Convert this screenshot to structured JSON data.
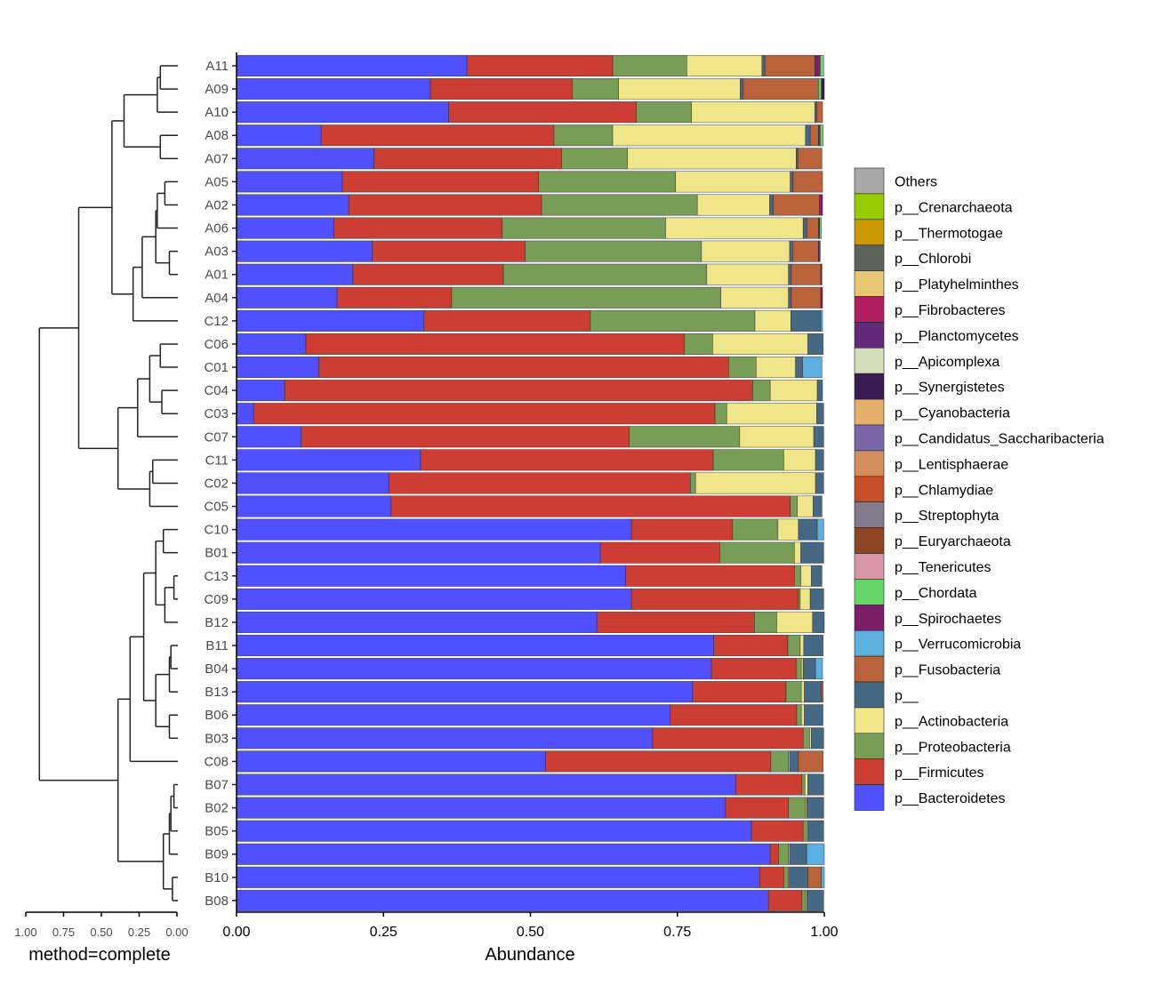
{
  "chart_data": {
    "type": "bar",
    "orientation": "horizontal-stacked",
    "xlabel": "Abundance",
    "xlim": [
      0,
      1
    ],
    "x_ticks": [
      "0.00",
      "0.25",
      "0.50",
      "0.75",
      "1.00"
    ],
    "dendrogram": {
      "method_label": "method=complete",
      "x_ticks": [
        "1.00",
        "0.75",
        "0.50",
        "0.25",
        "0.00"
      ]
    },
    "legend_placement": "right",
    "legend": [
      {
        "name": "Others",
        "color": "#A9A9A9"
      },
      {
        "name": "p__Crenarchaeota",
        "color": "#99CC00"
      },
      {
        "name": "p__Thermotogae",
        "color": "#CC9900"
      },
      {
        "name": "p__Chlorobi",
        "color": "#5A6458"
      },
      {
        "name": "p__Platyhelminthes",
        "color": "#E8C872"
      },
      {
        "name": "p__Fibrobacteres",
        "color": "#B21F61"
      },
      {
        "name": "p__Planctomycetes",
        "color": "#62297A"
      },
      {
        "name": "p__Apicomplexa",
        "color": "#D2DFB8"
      },
      {
        "name": "p__Synergistetes",
        "color": "#3A1B52"
      },
      {
        "name": "p__Cyanobacteria",
        "color": "#E6B06C"
      },
      {
        "name": "p__Candidatus_Saccharibacteria",
        "color": "#7A66A8"
      },
      {
        "name": "p__Lentisphaerae",
        "color": "#D48E5E"
      },
      {
        "name": "p__Chlamydiae",
        "color": "#C64E28"
      },
      {
        "name": "p__Streptophyta",
        "color": "#837B8B"
      },
      {
        "name": "p__Euryarchaeota",
        "color": "#8F4523"
      },
      {
        "name": "p__Tenericutes",
        "color": "#D996A6"
      },
      {
        "name": "p__Chordata",
        "color": "#66D66A"
      },
      {
        "name": "p__Spirochaetes",
        "color": "#7D1E69"
      },
      {
        "name": "p__Verrucomicrobia",
        "color": "#5BB0DF"
      },
      {
        "name": "p__Fusobacteria",
        "color": "#BA633A"
      },
      {
        "name": "p__",
        "color": "#456884"
      },
      {
        "name": "p__Actinobacteria",
        "color": "#F0E589"
      },
      {
        "name": "p__Proteobacteria",
        "color": "#779D57"
      },
      {
        "name": "p__Firmicutes",
        "color": "#CC3D33"
      },
      {
        "name": "p__Bacteroidetes",
        "color": "#5050FF"
      }
    ],
    "stack_order": [
      "p__Bacteroidetes",
      "p__Firmicutes",
      "p__Proteobacteria",
      "p__Actinobacteria",
      "p__",
      "p__Fusobacteria",
      "p__Verrucomicrobia",
      "p__Spirochaetes",
      "p__Chordata",
      "p__Synergistetes"
    ],
    "samples": [
      {
        "name": "A11",
        "values": [
          0.392,
          0.248,
          0.126,
          0.128,
          0.005,
          0.085,
          0,
          0.009,
          0.006,
          0
        ]
      },
      {
        "name": "A09",
        "values": [
          0.33,
          0.241,
          0.079,
          0.207,
          0.005,
          0.128,
          0,
          0,
          0.005,
          0.005
        ]
      },
      {
        "name": "A10",
        "values": [
          0.361,
          0.319,
          0.094,
          0.21,
          0.003,
          0.01,
          0,
          0,
          0,
          0
        ]
      },
      {
        "name": "A08",
        "values": [
          0.144,
          0.396,
          0.1,
          0.328,
          0.008,
          0.014,
          0,
          0.003,
          0.005,
          0
        ]
      },
      {
        "name": "A07",
        "values": [
          0.234,
          0.319,
          0.112,
          0.287,
          0.003,
          0.041,
          0,
          0,
          0,
          0
        ]
      },
      {
        "name": "A05",
        "values": [
          0.18,
          0.334,
          0.233,
          0.195,
          0.005,
          0.05,
          0,
          0,
          0,
          0
        ]
      },
      {
        "name": "A02",
        "values": [
          0.191,
          0.328,
          0.265,
          0.123,
          0.006,
          0.079,
          0,
          0.005,
          0,
          0
        ]
      },
      {
        "name": "A06",
        "values": [
          0.166,
          0.286,
          0.278,
          0.234,
          0.006,
          0.02,
          0,
          0.002,
          0.003,
          0
        ]
      },
      {
        "name": "A03",
        "values": [
          0.231,
          0.26,
          0.3,
          0.15,
          0.005,
          0.044,
          0,
          0.003,
          0,
          0
        ]
      },
      {
        "name": "A01",
        "values": [
          0.198,
          0.256,
          0.346,
          0.139,
          0.005,
          0.05,
          0,
          0.002,
          0,
          0
        ]
      },
      {
        "name": "A04",
        "values": [
          0.171,
          0.195,
          0.458,
          0.115,
          0.005,
          0.05,
          0,
          0.003,
          0,
          0
        ]
      },
      {
        "name": "C12",
        "values": [
          0.319,
          0.283,
          0.28,
          0.061,
          0.051,
          0,
          0.003,
          0,
          0,
          0
        ]
      },
      {
        "name": "C06",
        "values": [
          0.118,
          0.644,
          0.048,
          0.162,
          0.026,
          0,
          0,
          0,
          0,
          0
        ]
      },
      {
        "name": "C01",
        "values": [
          0.14,
          0.697,
          0.047,
          0.067,
          0.012,
          0,
          0.033,
          0,
          0,
          0
        ]
      },
      {
        "name": "C04",
        "values": [
          0.082,
          0.796,
          0.03,
          0.08,
          0.009,
          0,
          0,
          0,
          0,
          0
        ]
      },
      {
        "name": "C03",
        "values": [
          0.029,
          0.785,
          0.02,
          0.153,
          0.012,
          0,
          0,
          0,
          0,
          0
        ]
      },
      {
        "name": "C07",
        "values": [
          0.11,
          0.558,
          0.188,
          0.126,
          0.017,
          0,
          0,
          0,
          0,
          0
        ]
      },
      {
        "name": "C11",
        "values": [
          0.313,
          0.498,
          0.12,
          0.054,
          0.014,
          0,
          0,
          0,
          0,
          0
        ]
      },
      {
        "name": "C02",
        "values": [
          0.259,
          0.513,
          0.009,
          0.204,
          0.014,
          0,
          0,
          0,
          0,
          0
        ]
      },
      {
        "name": "C05",
        "values": [
          0.263,
          0.679,
          0.012,
          0.027,
          0.015,
          0,
          0,
          0,
          0,
          0
        ]
      },
      {
        "name": "C10",
        "values": [
          0.672,
          0.172,
          0.077,
          0.035,
          0.032,
          0,
          0.011,
          0,
          0,
          0
        ]
      },
      {
        "name": "B01",
        "values": [
          0.619,
          0.203,
          0.127,
          0.011,
          0.039,
          0,
          0,
          0,
          0,
          0
        ]
      },
      {
        "name": "C13",
        "values": [
          0.662,
          0.287,
          0.011,
          0.018,
          0.018,
          0,
          0,
          0,
          0,
          0
        ]
      },
      {
        "name": "C09",
        "values": [
          0.672,
          0.284,
          0.003,
          0.017,
          0.023,
          0,
          0,
          0,
          0,
          0
        ]
      },
      {
        "name": "B12",
        "values": [
          0.613,
          0.268,
          0.038,
          0.061,
          0.02,
          0,
          0,
          0,
          0,
          0
        ]
      },
      {
        "name": "B11",
        "values": [
          0.812,
          0.126,
          0.021,
          0.006,
          0.033,
          0,
          0,
          0,
          0,
          0
        ]
      },
      {
        "name": "B04",
        "values": [
          0.808,
          0.144,
          0.009,
          0.003,
          0.021,
          0,
          0.012,
          0,
          0,
          0
        ]
      },
      {
        "name": "B13",
        "values": [
          0.776,
          0.159,
          0.026,
          0.005,
          0.029,
          0.003,
          0,
          0,
          0,
          0
        ]
      },
      {
        "name": "B06",
        "values": [
          0.738,
          0.215,
          0.008,
          0.005,
          0.03,
          0,
          0.002,
          0,
          0,
          0
        ]
      },
      {
        "name": "B03",
        "values": [
          0.708,
          0.256,
          0.011,
          0.003,
          0.021,
          0,
          0,
          0,
          0,
          0
        ]
      },
      {
        "name": "C08",
        "values": [
          0.526,
          0.383,
          0.03,
          0.002,
          0.015,
          0.042,
          0,
          0,
          0,
          0
        ]
      },
      {
        "name": "B07",
        "values": [
          0.849,
          0.113,
          0.005,
          0.005,
          0.027,
          0,
          0,
          0,
          0,
          0
        ]
      },
      {
        "name": "B02",
        "values": [
          0.832,
          0.107,
          0.029,
          0.002,
          0.029,
          0,
          0,
          0,
          0,
          0
        ]
      },
      {
        "name": "B05",
        "values": [
          0.876,
          0.088,
          0.006,
          0.002,
          0.027,
          0,
          0,
          0,
          0,
          0
        ]
      },
      {
        "name": "B09",
        "values": [
          0.908,
          0.014,
          0.017,
          0.002,
          0.029,
          0,
          0.03,
          0,
          0,
          0
        ]
      },
      {
        "name": "B10",
        "values": [
          0.89,
          0.041,
          0.006,
          0.002,
          0.033,
          0.023,
          0.005,
          0,
          0,
          0
        ]
      },
      {
        "name": "B08",
        "values": [
          0.905,
          0.057,
          0.006,
          0.002,
          0.029,
          0,
          0,
          0,
          0,
          0
        ]
      }
    ],
    "tree_newick_heights": {
      "note": "merge heights in dendrogram units (0 at leaves, 1 at root)",
      "merges": [
        {
          "children": [
            "A11",
            "A09"
          ],
          "height": 0.11
        },
        {
          "children": [
            "A11+A09",
            "A10"
          ],
          "height": 0.13
        },
        {
          "children": [
            "A08",
            "A07"
          ],
          "height": 0.11
        },
        {
          "children": [
            "A11-A10",
            "A08-A07"
          ],
          "height": 0.35
        },
        {
          "children": [
            "A05",
            "A02"
          ],
          "height": 0.08
        },
        {
          "children": [
            "A05+A02",
            "A06"
          ],
          "height": 0.13
        },
        {
          "children": [
            "A03",
            "A01"
          ],
          "height": 0.05
        },
        {
          "children": [
            "A05-A06",
            "A03-A01"
          ],
          "height": 0.14
        },
        {
          "children": [
            "A05-A01",
            "A04"
          ],
          "height": 0.23
        },
        {
          "children": [
            "A05-A04",
            "C12"
          ],
          "height": 0.29
        },
        {
          "children": [
            "A11-A07",
            "A05-C12"
          ],
          "height": 0.43
        },
        {
          "children": [
            "C06",
            "C01"
          ],
          "height": 0.11
        },
        {
          "children": [
            "C04",
            "C03"
          ],
          "height": 0.1
        },
        {
          "children": [
            "C06-C01",
            "C04-C03"
          ],
          "height": 0.18
        },
        {
          "children": [
            "C06-C03",
            "C07"
          ],
          "height": 0.26
        },
        {
          "children": [
            "C11",
            "C02"
          ],
          "height": 0.16
        },
        {
          "children": [
            "C11+C02",
            "C05"
          ],
          "height": 0.18
        },
        {
          "children": [
            "C06-C07",
            "C11-C05"
          ],
          "height": 0.39
        },
        {
          "children": [
            "A-cluster",
            "C-cluster"
          ],
          "height": 0.65
        },
        {
          "children": [
            "C10",
            "B01"
          ],
          "height": 0.09
        },
        {
          "children": [
            "C13",
            "C09"
          ],
          "height": 0.02
        },
        {
          "children": [
            "C13+C09",
            "B12"
          ],
          "height": 0.08
        },
        {
          "children": [
            "C10-B01",
            "C13-B12"
          ],
          "height": 0.14
        },
        {
          "children": [
            "B11",
            "B04"
          ],
          "height": 0.04
        },
        {
          "children": [
            "B11+B04",
            "B13"
          ],
          "height": 0.05
        },
        {
          "children": [
            "B06",
            "B03"
          ],
          "height": 0.05
        },
        {
          "children": [
            "B11-B13",
            "B06-B03"
          ],
          "height": 0.14
        },
        {
          "children": [
            "C10-B12",
            "B11-B03"
          ],
          "height": 0.22
        },
        {
          "children": [
            "C10-B03",
            "C08"
          ],
          "height": 0.31
        },
        {
          "children": [
            "B07",
            "B02"
          ],
          "height": 0.02
        },
        {
          "children": [
            "B07+B02",
            "B05"
          ],
          "height": 0.04
        },
        {
          "children": [
            "B07-B05",
            "B09"
          ],
          "height": 0.05
        },
        {
          "children": [
            "B10",
            "B08"
          ],
          "height": 0.03
        },
        {
          "children": [
            "B07-B09",
            "B10-B08"
          ],
          "height": 0.09
        },
        {
          "children": [
            "C10-C08",
            "B07-B08"
          ],
          "height": 0.39
        },
        {
          "children": [
            "AC-cluster",
            "B-cluster"
          ],
          "height": 0.91
        }
      ]
    }
  }
}
